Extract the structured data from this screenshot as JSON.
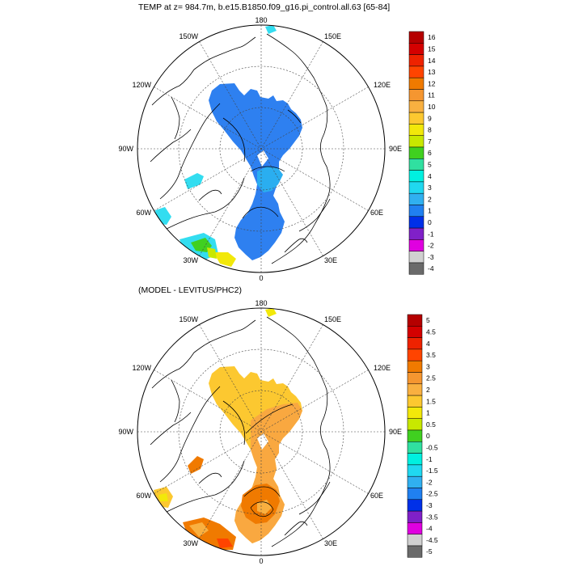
{
  "top_panel": {
    "title": "TEMP at z= 984.7m, b.e15.B1850.f09_g16.pi_control.all.63 [65-84]",
    "lon_labels": {
      "180": "180",
      "150E": "150E",
      "120E": "120E",
      "90E": "90E",
      "60E": "60E",
      "30E": "30E",
      "0": "0",
      "30W": "30W",
      "60W": "60W",
      "90W": "90W",
      "120W": "120W",
      "150W": "150W"
    },
    "colorbar": {
      "labels": [
        "16",
        "15",
        "14",
        "13",
        "12",
        "11",
        "10",
        "9",
        "8",
        "7",
        "6",
        "5",
        "4",
        "3",
        "2",
        "1",
        "0",
        "-1",
        "-2",
        "-3",
        "-4"
      ],
      "colors": [
        "#b50000",
        "#d40000",
        "#ee2200",
        "#ff4400",
        "#f07a00",
        "#f59630",
        "#f9b040",
        "#fcc830",
        "#f2e80a",
        "#c8e800",
        "#40d020",
        "#30e0a0",
        "#00f0e0",
        "#20d8f0",
        "#30b0f0",
        "#2080f0",
        "#0030e8",
        "#8020c8",
        "#e000e0",
        "#d0d0d0",
        "#6a6a6a"
      ]
    }
  },
  "bottom_panel": {
    "title": "(MODEL - LEVITUS/PHC2)",
    "lon_labels": {
      "180": "180",
      "150E": "150E",
      "120E": "120E",
      "90E": "90E",
      "60E": "60E",
      "30E": "30E",
      "0": "0",
      "30W": "30W",
      "60W": "60W",
      "90W": "90W",
      "120W": "120W",
      "150W": "150W"
    },
    "colorbar": {
      "labels": [
        "5",
        "4.5",
        "4",
        "3.5",
        "3",
        "2.5",
        "2",
        "1.5",
        "1",
        "0.5",
        "0",
        "-0.5",
        "-1",
        "-1.5",
        "-2",
        "-2.5",
        "-3",
        "-3.5",
        "-4",
        "-4.5",
        "-5"
      ],
      "colors": [
        "#b50000",
        "#d40000",
        "#ee2200",
        "#ff4400",
        "#f07a00",
        "#f59630",
        "#f9b040",
        "#fcc830",
        "#f2e80a",
        "#c8e800",
        "#40d020",
        "#30e0a0",
        "#00f0e0",
        "#20d8f0",
        "#30b0f0",
        "#2080f0",
        "#0030e8",
        "#8020c8",
        "#e000e0",
        "#d0d0d0",
        "#6a6a6a"
      ]
    }
  }
}
